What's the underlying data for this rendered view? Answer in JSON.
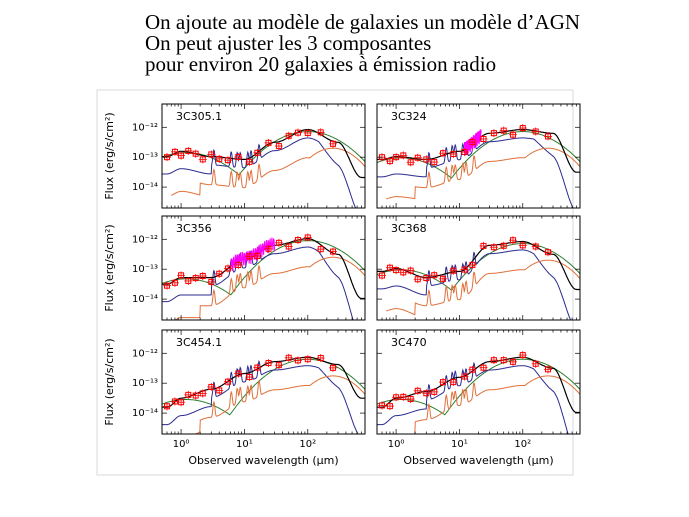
{
  "slide": {
    "title_lines": [
      "On ajoute au modèle de galaxies un modèle d’AGN",
      "On peut ajuster  les 3 composantes",
      "pour environ 20 galaxies à émission radio"
    ]
  },
  "axes": {
    "xlabel": "Observed wavelength (μm)",
    "ylabel": "Flux (erg/s/cm²)",
    "x_ticks": [
      "10⁰",
      "10¹",
      "10²"
    ],
    "x_tick_values": [
      1,
      10,
      100
    ],
    "y_ticks": [
      "10⁻¹²",
      "10⁻¹³",
      "10⁻¹⁴"
    ],
    "y_tick_values": [
      1e-12,
      1e-13,
      1e-14
    ]
  },
  "colors": {
    "total": "#000000",
    "agn": "#2b2b8f",
    "stellar": "#2e7d2e",
    "dust": "#e0703a",
    "data": "#ff0000",
    "spectrum": "#ff00ff"
  },
  "chart_data": [
    {
      "type": "line",
      "label": "3C305.1",
      "xscale": "log",
      "yscale": "log",
      "xlim": [
        0.5,
        800
      ],
      "ylim": [
        2e-15,
        6e-12
      ],
      "series": [
        {
          "values": [
            [
              0.6,
              1e-13
            ],
            [
              1,
              1.5e-13
            ],
            [
              3,
              1e-13
            ],
            [
              10,
              8e-14
            ],
            [
              30,
              3e-13
            ],
            [
              100,
              8e-13
            ],
            [
              300,
              3e-13
            ],
            [
              700,
              2e-14
            ]
          ]
        }
      ]
    },
    {
      "type": "line",
      "label": "3C324",
      "xscale": "log",
      "yscale": "log",
      "xlim": [
        0.5,
        800
      ],
      "ylim": [
        2e-15,
        6e-12
      ],
      "series": [
        {
          "values": [
            [
              0.6,
              8e-14
            ],
            [
              1,
              1e-13
            ],
            [
              3,
              8e-14
            ],
            [
              10,
              1.5e-13
            ],
            [
              30,
              6e-13
            ],
            [
              100,
              8e-13
            ],
            [
              300,
              6e-13
            ],
            [
              700,
              3e-14
            ]
          ]
        }
      ]
    },
    {
      "type": "line",
      "label": "3C356",
      "xscale": "log",
      "yscale": "log",
      "xlim": [
        0.5,
        800
      ],
      "ylim": [
        2e-15,
        6e-12
      ],
      "series": [
        {
          "values": [
            [
              0.6,
              3e-14
            ],
            [
              1,
              5e-14
            ],
            [
              3,
              5e-14
            ],
            [
              10,
              2e-13
            ],
            [
              30,
              6e-13
            ],
            [
              100,
              1e-12
            ],
            [
              300,
              3e-13
            ],
            [
              700,
              1e-14
            ]
          ]
        }
      ]
    },
    {
      "type": "line",
      "label": "3C368",
      "xscale": "log",
      "yscale": "log",
      "xlim": [
        0.5,
        800
      ],
      "ylim": [
        2e-15,
        6e-12
      ],
      "series": [
        {
          "values": [
            [
              0.6,
              8e-14
            ],
            [
              1,
              1e-13
            ],
            [
              3,
              5e-14
            ],
            [
              10,
              8e-14
            ],
            [
              30,
              6e-13
            ],
            [
              100,
              8e-13
            ],
            [
              300,
              3e-13
            ],
            [
              700,
              2e-14
            ]
          ]
        }
      ]
    },
    {
      "type": "line",
      "label": "3C454.1",
      "xscale": "log",
      "yscale": "log",
      "xlim": [
        0.5,
        800
      ],
      "ylim": [
        2e-15,
        6e-12
      ],
      "series": [
        {
          "values": [
            [
              0.6,
              1.5e-14
            ],
            [
              1,
              3e-14
            ],
            [
              3,
              6e-14
            ],
            [
              10,
              2e-13
            ],
            [
              30,
              5e-13
            ],
            [
              100,
              7e-13
            ],
            [
              300,
              4e-13
            ],
            [
              700,
              3e-14
            ]
          ]
        }
      ]
    },
    {
      "type": "line",
      "label": "3C470",
      "xscale": "log",
      "yscale": "log",
      "xlim": [
        0.5,
        800
      ],
      "ylim": [
        2e-15,
        6e-12
      ],
      "series": [
        {
          "values": [
            [
              0.6,
              1.5e-14
            ],
            [
              1,
              3e-14
            ],
            [
              3,
              5e-14
            ],
            [
              10,
              1.5e-13
            ],
            [
              30,
              5e-13
            ],
            [
              100,
              7e-13
            ],
            [
              300,
              3e-13
            ],
            [
              700,
              1e-14
            ]
          ]
        }
      ]
    }
  ]
}
